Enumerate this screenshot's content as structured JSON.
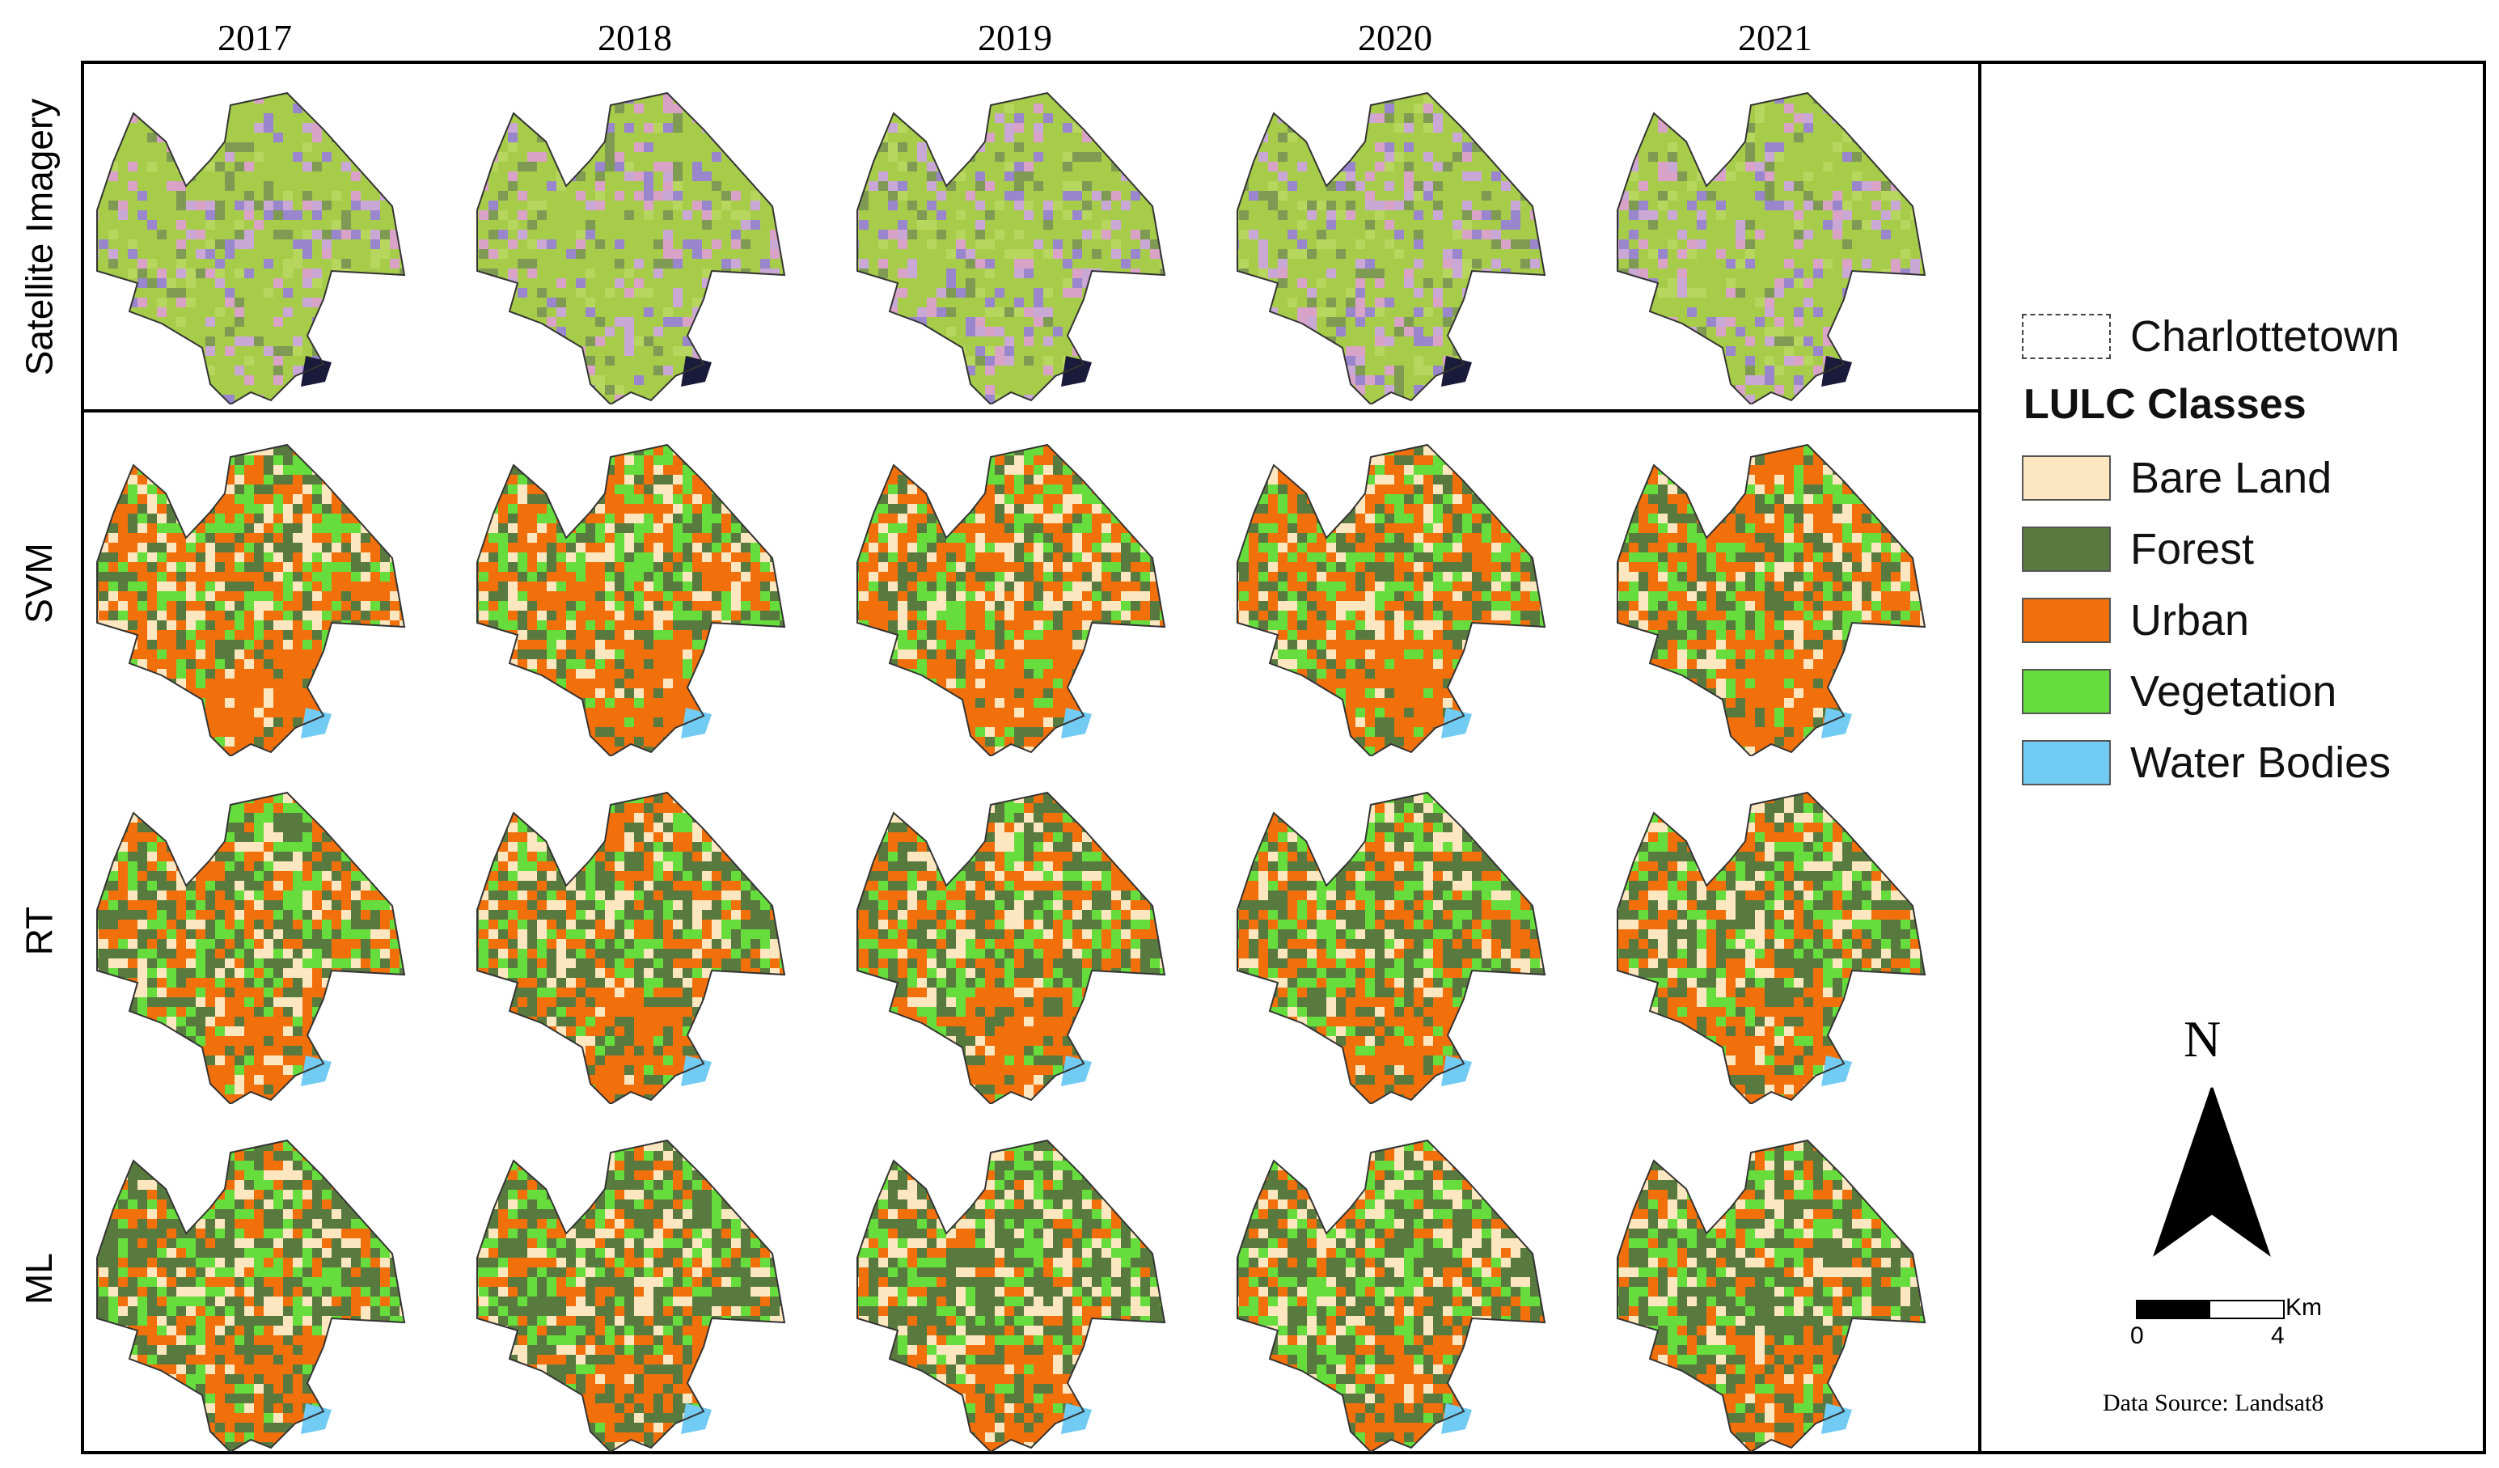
{
  "years": [
    "2017",
    "2018",
    "2019",
    "2020",
    "2021"
  ],
  "rows": [
    "Satellite Imagery",
    "SVM",
    "RT",
    "ML"
  ],
  "legend": {
    "boundary_label": "Charlottetown",
    "title": "LULC Classes",
    "classes": [
      {
        "label": "Bare Land",
        "color": "#fde7c0"
      },
      {
        "label": "Forest",
        "color": "#587a3f"
      },
      {
        "label": "Urban",
        "color": "#f2700c"
      },
      {
        "label": "Vegetation",
        "color": "#66dd3c"
      },
      {
        "label": "Water Bodies",
        "color": "#72cbf2"
      }
    ]
  },
  "north_arrow": {
    "label": "N"
  },
  "scale_bar": {
    "unit": "Km",
    "start": "0",
    "end": "4"
  },
  "data_source": "Data Source: Landsat8",
  "satellite_colors": [
    "#a6cc4a",
    "#c9a8d6",
    "#9a86cc",
    "#d9a3c7",
    "#b7d65e",
    "#7f9a52"
  ]
}
